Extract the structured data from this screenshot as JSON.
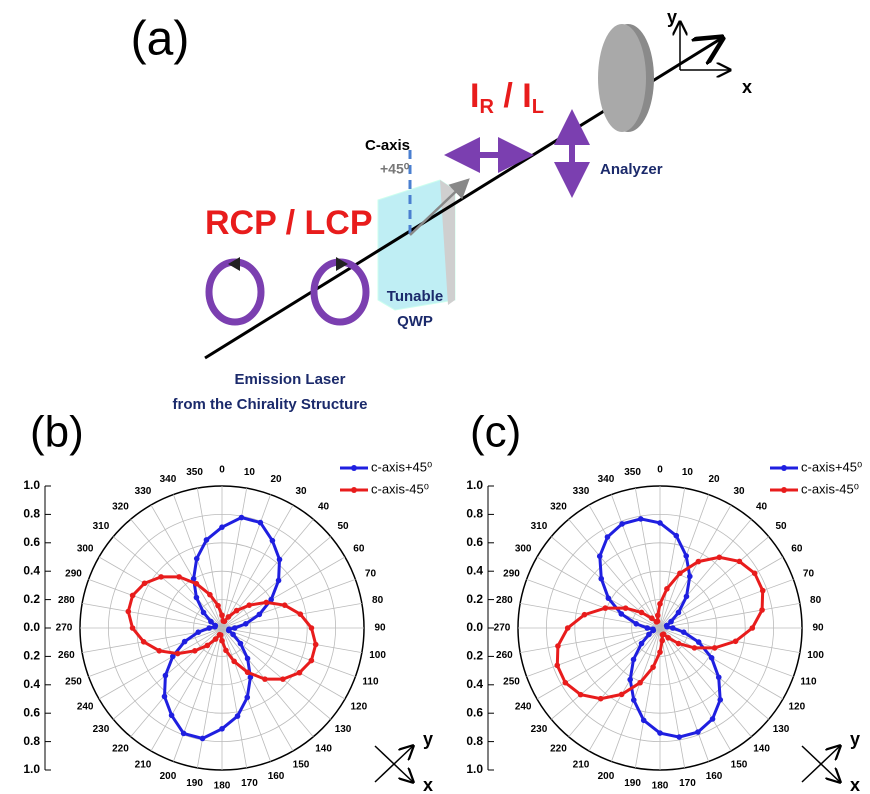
{
  "diagram": {
    "label": "(a)",
    "ratio": [
      "I",
      "R",
      " / I",
      "L"
    ],
    "axis_y": "y",
    "axis_x": "x",
    "c_axis": "C-axis",
    "angle": "+45⁰",
    "analyzer": "Analyzer",
    "polarization": "RCP / LCP",
    "qwp": [
      "Tunable",
      "QWP"
    ],
    "source": [
      "Emission Laser",
      "from the Chirality Structure"
    ]
  },
  "chart_data": [
    {
      "type": "polar",
      "title": "(b)",
      "theta": [
        0,
        10,
        20,
        30,
        40,
        50,
        60,
        70,
        80,
        90,
        100,
        110,
        120,
        130,
        140,
        150,
        160,
        170,
        180,
        190,
        200,
        210,
        220,
        230,
        240,
        250,
        260,
        270,
        280,
        290,
        300,
        310,
        320,
        330,
        340,
        350
      ],
      "ylim": [
        0,
        1
      ],
      "yticks": [
        {
          "value": 0,
          "label": "0.0"
        },
        {
          "value": 0.2,
          "label": "0.2"
        },
        {
          "value": 0.4,
          "label": "0.4"
        },
        {
          "value": 0.6,
          "label": "0.6"
        },
        {
          "value": 0.8,
          "label": "0.8"
        },
        {
          "value": 1,
          "label": "1.0"
        }
      ],
      "grid": true,
      "legend": "upper right",
      "xlabel": "x",
      "ylabel": "y",
      "series": [
        {
          "name": "c-axis+45⁰",
          "color": "#1f1fe0",
          "values": [
            0.71,
            0.79,
            0.79,
            0.71,
            0.63,
            0.52,
            0.4,
            0.28,
            0.17,
            0.09,
            0.05,
            0.05,
            0.09,
            0.17,
            0.28,
            0.4,
            0.52,
            0.63,
            0.71,
            0.79,
            0.79,
            0.71,
            0.63,
            0.52,
            0.4,
            0.28,
            0.17,
            0.09,
            0.05,
            0.05,
            0.09,
            0.17,
            0.28,
            0.4,
            0.52,
            0.63
          ]
        },
        {
          "name": "c-axis-45⁰",
          "color": "#e81c1c",
          "values": [
            0.09,
            0.05,
            0.05,
            0.09,
            0.16,
            0.25,
            0.36,
            0.47,
            0.56,
            0.63,
            0.67,
            0.67,
            0.63,
            0.56,
            0.47,
            0.36,
            0.25,
            0.16,
            0.09,
            0.05,
            0.05,
            0.09,
            0.16,
            0.25,
            0.36,
            0.47,
            0.56,
            0.63,
            0.67,
            0.67,
            0.63,
            0.56,
            0.47,
            0.36,
            0.25,
            0.16
          ]
        }
      ]
    },
    {
      "type": "polar",
      "title": "(c)",
      "theta": [
        0,
        10,
        20,
        30,
        40,
        50,
        60,
        70,
        80,
        90,
        100,
        110,
        120,
        130,
        140,
        150,
        160,
        170,
        180,
        190,
        200,
        210,
        220,
        230,
        240,
        250,
        260,
        270,
        280,
        290,
        300,
        310,
        320,
        330,
        340,
        350
      ],
      "ylim": [
        0,
        1
      ],
      "yticks": [
        {
          "value": 0,
          "label": "0.0"
        },
        {
          "value": 0.2,
          "label": "0.2"
        },
        {
          "value": 0.4,
          "label": "0.4"
        },
        {
          "value": 0.6,
          "label": "0.6"
        },
        {
          "value": 0.8,
          "label": "0.8"
        },
        {
          "value": 1,
          "label": "1.0"
        }
      ],
      "grid": true,
      "legend": "upper right",
      "xlabel": "x",
      "ylabel": "y",
      "series": [
        {
          "name": "c-axis+45⁰",
          "color": "#1f1fe0",
          "values": [
            0.74,
            0.66,
            0.54,
            0.42,
            0.29,
            0.17,
            0.09,
            0.05,
            0.05,
            0.09,
            0.17,
            0.29,
            0.42,
            0.54,
            0.66,
            0.74,
            0.78,
            0.78,
            0.74,
            0.66,
            0.54,
            0.42,
            0.29,
            0.17,
            0.09,
            0.05,
            0.05,
            0.09,
            0.17,
            0.29,
            0.42,
            0.54,
            0.66,
            0.74,
            0.78,
            0.78
          ]
        },
        {
          "name": "c-axis-45⁰",
          "color": "#e81c1c",
          "values": [
            0.17,
            0.28,
            0.41,
            0.54,
            0.65,
            0.73,
            0.77,
            0.77,
            0.73,
            0.65,
            0.54,
            0.41,
            0.28,
            0.17,
            0.09,
            0.05,
            0.05,
            0.09,
            0.17,
            0.28,
            0.41,
            0.54,
            0.65,
            0.73,
            0.77,
            0.77,
            0.73,
            0.65,
            0.54,
            0.41,
            0.28,
            0.17,
            0.09,
            0.05,
            0.05,
            0.09
          ]
        }
      ]
    }
  ]
}
